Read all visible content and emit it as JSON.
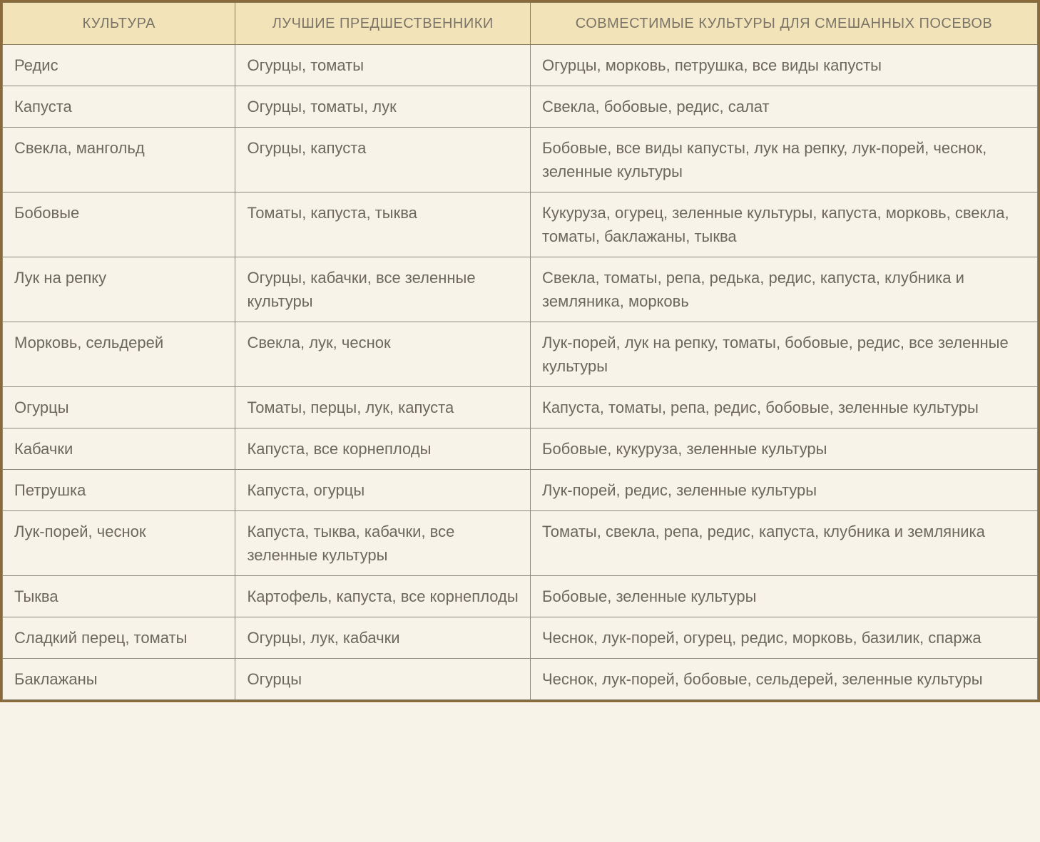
{
  "table": {
    "type": "table",
    "background_color": "#f7f3e8",
    "header_bg": "#f2e3b8",
    "outer_border_color": "#8a6a3a",
    "inner_border_color": "#8a8a7a",
    "header_text_color": "#7a7568",
    "body_text_color": "#6d685c",
    "header_fontsize": 20,
    "body_fontsize": 22,
    "column_widths_pct": [
      22.5,
      28.5,
      49
    ],
    "columns": [
      "КУЛЬТУРА",
      "ЛУЧШИЕ ПРЕДШЕСТВЕННИКИ",
      "СОВМЕСТИМЫЕ КУЛЬТУРЫ ДЛЯ СМЕШАННЫХ ПОСЕВОВ"
    ],
    "rows": [
      {
        "crop": "Редис",
        "predecessors": "Огурцы, томаты",
        "compatible": "Огурцы, морковь, петрушка, все виды капусты"
      },
      {
        "crop": "Капуста",
        "predecessors": "Огурцы, томаты, лук",
        "compatible": "Свекла, бобовые, редис, салат"
      },
      {
        "crop": "Свекла, мангольд",
        "predecessors": "Огурцы, капуста",
        "compatible": "Бобовые, все виды капусты, лук на репку, лук-порей, чеснок, зеленные культуры"
      },
      {
        "crop": "Бобовые",
        "predecessors": "Томаты, капуста, тыква",
        "compatible": "Кукуруза, огурец, зеленные культуры, капуста, морковь, свекла, томаты, баклажаны, тыква"
      },
      {
        "crop": "Лук на репку",
        "predecessors": "Огурцы, кабачки, все зеленные культуры",
        "compatible": "Свекла, томаты, репа, редька, редис, капуста, клубника и земляника, морковь"
      },
      {
        "crop": "Морковь, сельдерей",
        "predecessors": "Свекла, лук, чеснок",
        "compatible": "Лук-порей, лук на репку, томаты, бобовые, редис, все зеленные культуры"
      },
      {
        "crop": "Огурцы",
        "predecessors": "Томаты, перцы, лук, капуста",
        "compatible": "Капуста, томаты, репа, редис, бобовые, зеленные культуры"
      },
      {
        "crop": "Кабачки",
        "predecessors": "Капуста, все корнеплоды",
        "compatible": "Бобовые, кукуруза, зеленные культуры"
      },
      {
        "crop": "Петрушка",
        "predecessors": "Капуста, огурцы",
        "compatible": "Лук-порей, редис, зеленные культуры"
      },
      {
        "crop": "Лук-порей, чеснок",
        "predecessors": "Капуста, тыква, кабачки, все зеленные культуры",
        "compatible": "Томаты, свекла, репа, редис, капуста, клубника и земляника"
      },
      {
        "crop": "Тыква",
        "predecessors": "Картофель, капуста, все корнеплоды",
        "compatible": "Бобовые, зеленные культуры"
      },
      {
        "crop": "Сладкий перец, томаты",
        "predecessors": "Огурцы, лук, кабачки",
        "compatible": "Чеснок, лук-порей, огурец, редис, морковь, базилик, спаржа"
      },
      {
        "crop": "Баклажаны",
        "predecessors": "Огурцы",
        "compatible": "Чеснок, лук-порей, бобовые, сельдерей, зеленные культуры"
      }
    ]
  }
}
